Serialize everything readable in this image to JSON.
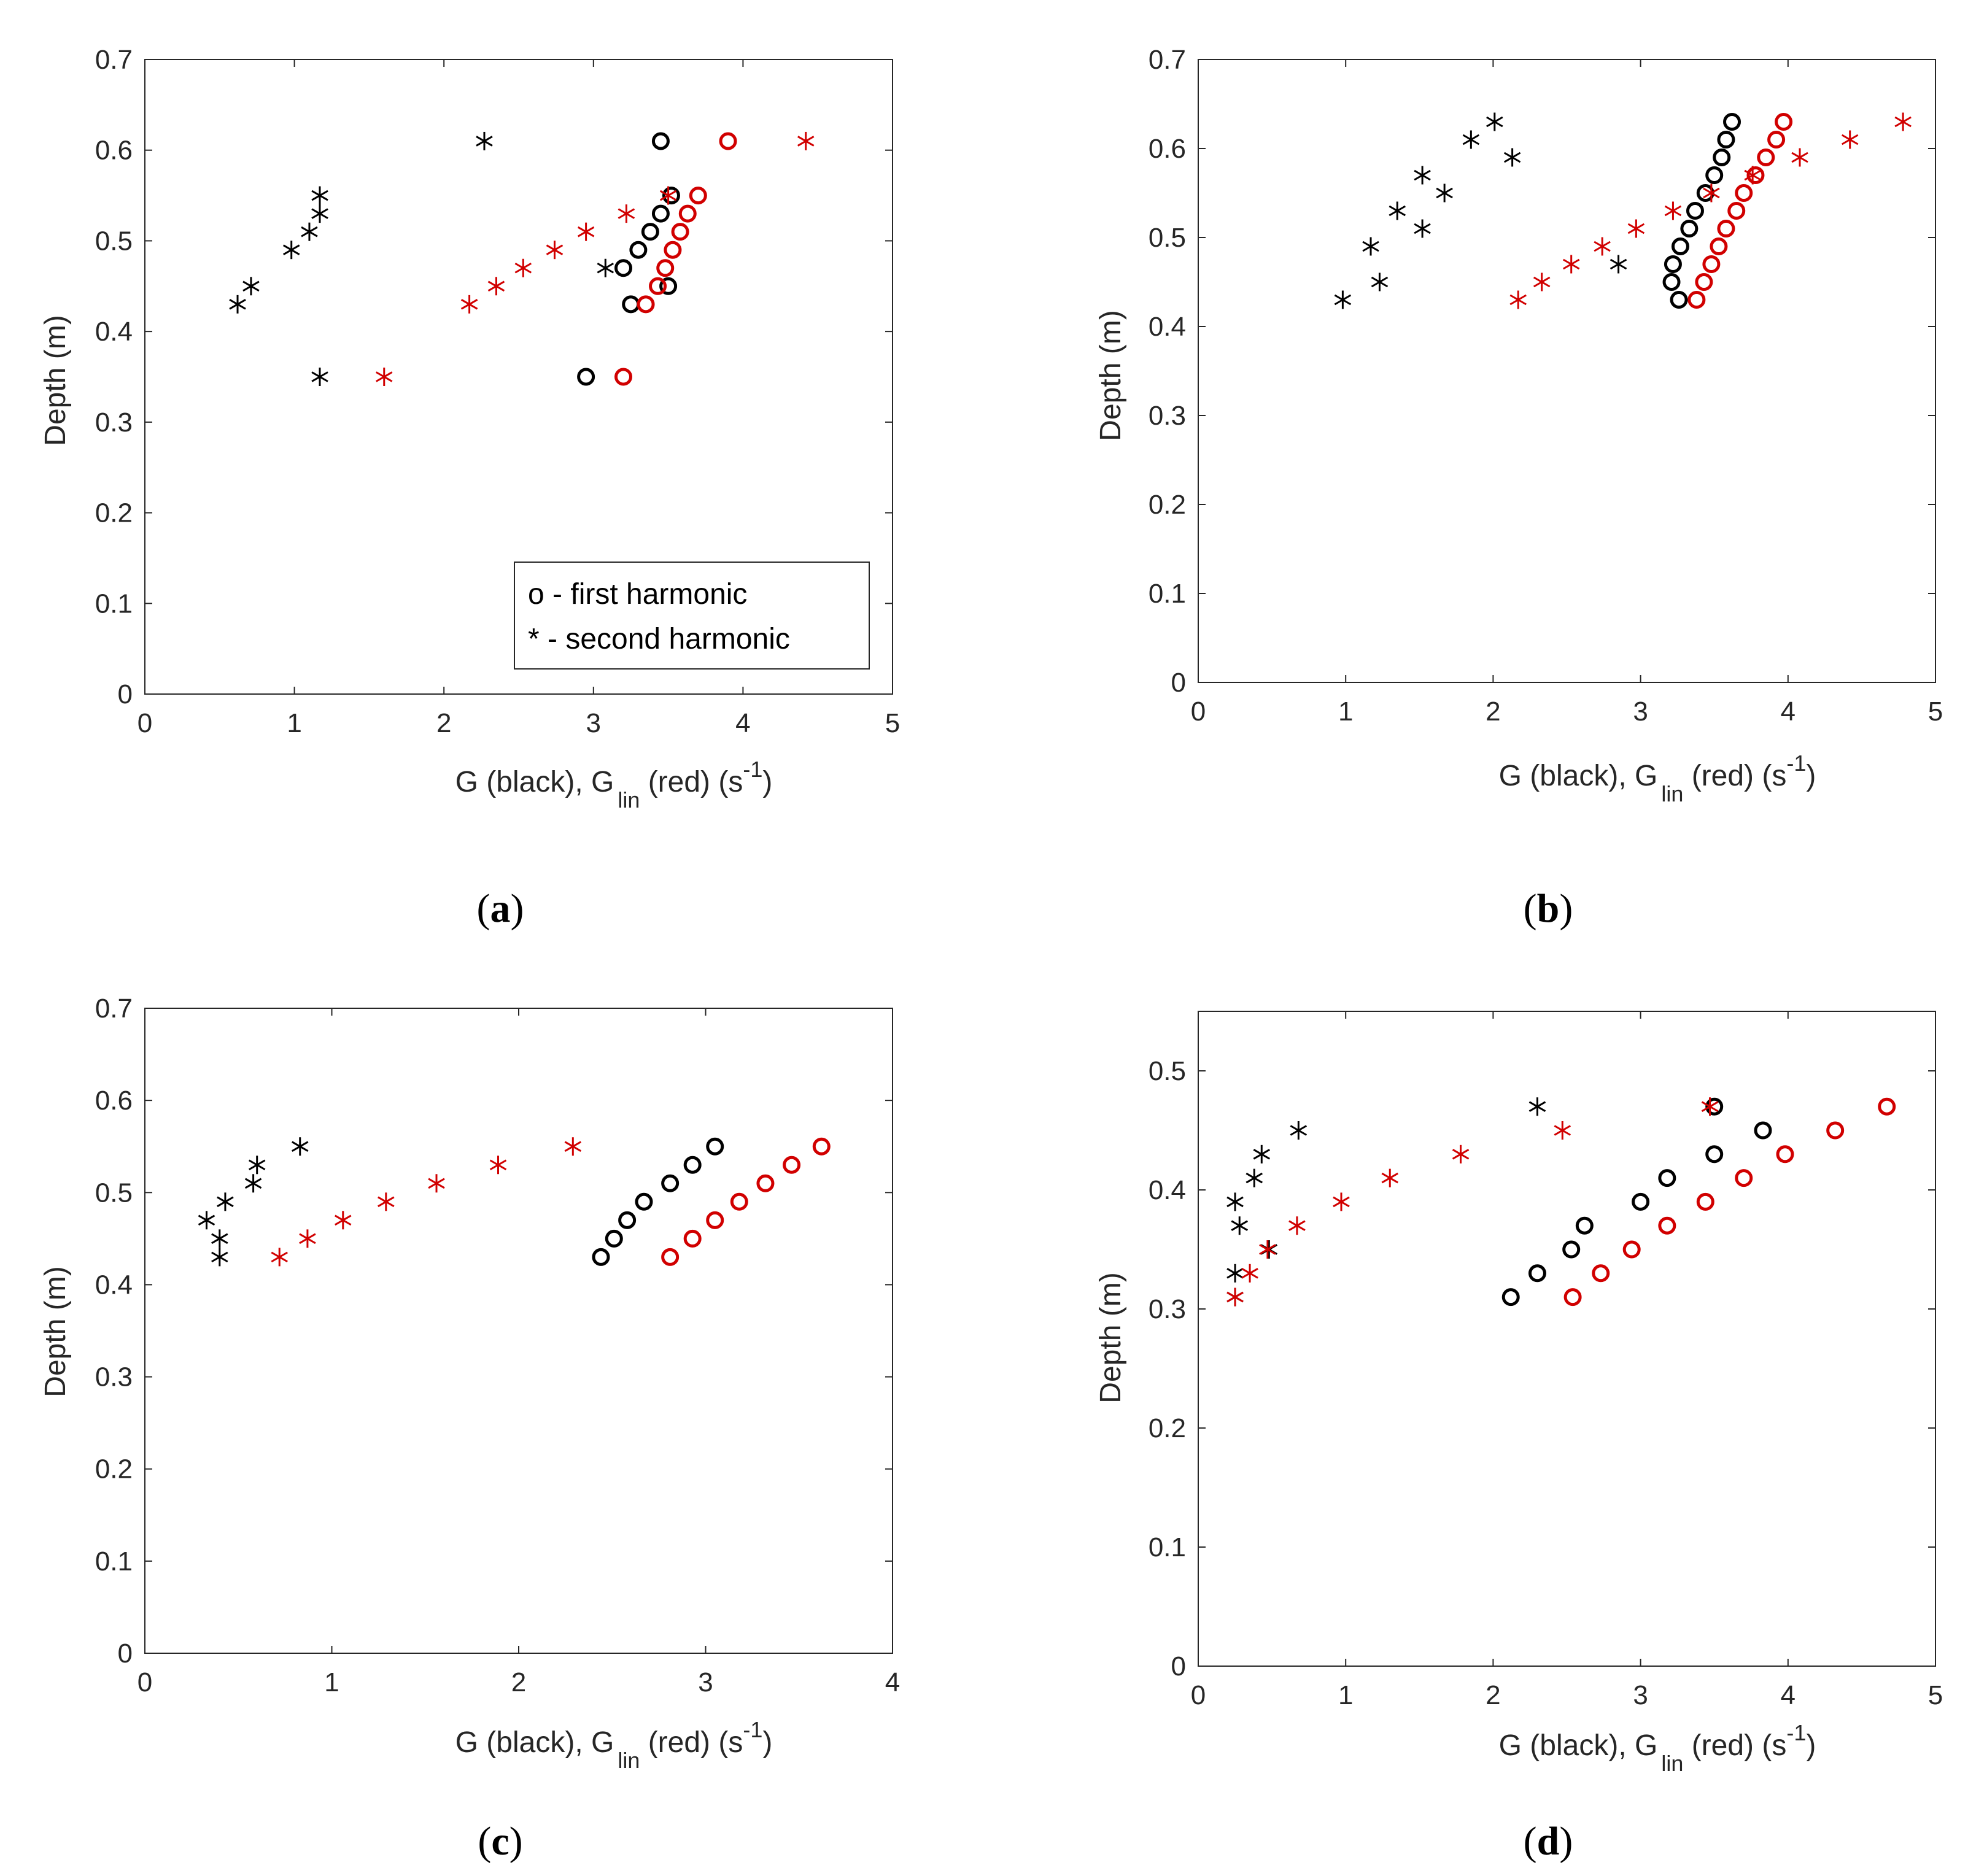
{
  "colors": {
    "black_series": "#000000",
    "red_series": "#d10000",
    "axis": "#262626"
  },
  "axis_labels": {
    "y": "Depth (m)",
    "x_prefix": "G (black), G",
    "x_sub": "lin",
    "x_mid": " (red) (s",
    "x_sup": "-1",
    "x_suffix": ")"
  },
  "legend": {
    "first": "o - first harmonic",
    "second": "* - second harmonic"
  },
  "captions": [
    {
      "open": "(",
      "letter": "a",
      "close": ")"
    },
    {
      "open": "(",
      "letter": "b",
      "close": ")"
    },
    {
      "open": "(",
      "letter": "c",
      "close": ")"
    },
    {
      "open": "(",
      "letter": "d",
      "close": ")"
    }
  ],
  "chart_data": [
    {
      "panel": "a",
      "type": "scatter",
      "xlabel": "G (black), G lin (red) (s-1)",
      "ylabel": "Depth (m)",
      "xlim": [
        0,
        5
      ],
      "ylim": [
        0,
        0.7
      ],
      "xticks": [
        0,
        1,
        2,
        3,
        4,
        5
      ],
      "yticks": [
        0,
        0.1,
        0.2,
        0.3,
        0.4,
        0.5,
        0.6,
        0.7
      ],
      "legend_position": "bottom-right",
      "series": [
        {
          "name": "G first harmonic",
          "marker": "o",
          "color": "black",
          "points": [
            [
              3.45,
              0.61
            ],
            [
              3.52,
              0.55
            ],
            [
              3.45,
              0.53
            ],
            [
              3.38,
              0.51
            ],
            [
              3.3,
              0.49
            ],
            [
              3.2,
              0.47
            ],
            [
              3.5,
              0.45
            ],
            [
              3.25,
              0.43
            ],
            [
              2.95,
              0.35
            ]
          ]
        },
        {
          "name": "G second harmonic",
          "marker": "*",
          "color": "black",
          "points": [
            [
              2.27,
              0.61
            ],
            [
              1.17,
              0.55
            ],
            [
              1.17,
              0.53
            ],
            [
              1.1,
              0.51
            ],
            [
              0.98,
              0.49
            ],
            [
              3.08,
              0.47
            ],
            [
              0.71,
              0.45
            ],
            [
              0.62,
              0.43
            ],
            [
              1.17,
              0.35
            ]
          ]
        },
        {
          "name": "G_lin first harmonic",
          "marker": "o",
          "color": "red",
          "points": [
            [
              3.9,
              0.61
            ],
            [
              3.7,
              0.55
            ],
            [
              3.63,
              0.53
            ],
            [
              3.58,
              0.51
            ],
            [
              3.53,
              0.49
            ],
            [
              3.48,
              0.47
            ],
            [
              3.43,
              0.45
            ],
            [
              3.35,
              0.43
            ],
            [
              3.2,
              0.35
            ]
          ]
        },
        {
          "name": "G_lin second harmonic",
          "marker": "*",
          "color": "red",
          "points": [
            [
              4.42,
              0.61
            ],
            [
              3.5,
              0.55
            ],
            [
              3.22,
              0.53
            ],
            [
              2.95,
              0.51
            ],
            [
              2.74,
              0.49
            ],
            [
              2.53,
              0.47
            ],
            [
              2.35,
              0.45
            ],
            [
              2.17,
              0.43
            ],
            [
              1.6,
              0.35
            ]
          ]
        }
      ]
    },
    {
      "panel": "b",
      "type": "scatter",
      "xlabel": "G (black), G lin (red) (s-1)",
      "ylabel": "Depth (m)",
      "xlim": [
        0,
        5
      ],
      "ylim": [
        0,
        0.7
      ],
      "xticks": [
        0,
        1,
        2,
        3,
        4,
        5
      ],
      "yticks": [
        0,
        0.1,
        0.2,
        0.3,
        0.4,
        0.5,
        0.6,
        0.7
      ],
      "series": [
        {
          "name": "G first harmonic",
          "marker": "o",
          "color": "black",
          "points": [
            [
              3.62,
              0.63
            ],
            [
              3.58,
              0.61
            ],
            [
              3.55,
              0.59
            ],
            [
              3.5,
              0.57
            ],
            [
              3.44,
              0.55
            ],
            [
              3.37,
              0.53
            ],
            [
              3.33,
              0.51
            ],
            [
              3.27,
              0.49
            ],
            [
              3.22,
              0.47
            ],
            [
              3.21,
              0.45
            ],
            [
              3.26,
              0.43
            ]
          ]
        },
        {
          "name": "G second harmonic",
          "marker": "*",
          "color": "black",
          "points": [
            [
              2.01,
              0.63
            ],
            [
              1.85,
              0.61
            ],
            [
              2.13,
              0.59
            ],
            [
              1.52,
              0.57
            ],
            [
              1.67,
              0.55
            ],
            [
              1.35,
              0.53
            ],
            [
              1.52,
              0.51
            ],
            [
              1.17,
              0.49
            ],
            [
              2.85,
              0.47
            ],
            [
              1.23,
              0.45
            ],
            [
              0.98,
              0.43
            ]
          ]
        },
        {
          "name": "G_lin first harmonic",
          "marker": "o",
          "color": "red",
          "points": [
            [
              3.97,
              0.63
            ],
            [
              3.92,
              0.61
            ],
            [
              3.85,
              0.59
            ],
            [
              3.78,
              0.57
            ],
            [
              3.7,
              0.55
            ],
            [
              3.65,
              0.53
            ],
            [
              3.58,
              0.51
            ],
            [
              3.53,
              0.49
            ],
            [
              3.48,
              0.47
            ],
            [
              3.43,
              0.45
            ],
            [
              3.38,
              0.43
            ]
          ]
        },
        {
          "name": "G_lin second harmonic",
          "marker": "*",
          "color": "red",
          "points": [
            [
              4.78,
              0.63
            ],
            [
              4.42,
              0.61
            ],
            [
              4.08,
              0.59
            ],
            [
              3.76,
              0.57
            ],
            [
              3.48,
              0.55
            ],
            [
              3.22,
              0.53
            ],
            [
              2.97,
              0.51
            ],
            [
              2.74,
              0.49
            ],
            [
              2.53,
              0.47
            ],
            [
              2.33,
              0.45
            ],
            [
              2.17,
              0.43
            ]
          ]
        }
      ]
    },
    {
      "panel": "c",
      "type": "scatter",
      "xlabel": "G (black), G lin (red) (s-1)",
      "ylabel": "Depth (m)",
      "xlim": [
        0,
        4
      ],
      "ylim": [
        0,
        0.7
      ],
      "xticks": [
        0,
        1,
        2,
        3,
        4
      ],
      "yticks": [
        0,
        0.1,
        0.2,
        0.3,
        0.4,
        0.5,
        0.6,
        0.7
      ],
      "series": [
        {
          "name": "G first harmonic",
          "marker": "o",
          "color": "black",
          "points": [
            [
              3.05,
              0.55
            ],
            [
              2.93,
              0.53
            ],
            [
              2.81,
              0.51
            ],
            [
              2.67,
              0.49
            ],
            [
              2.58,
              0.47
            ],
            [
              2.51,
              0.45
            ],
            [
              2.44,
              0.43
            ]
          ]
        },
        {
          "name": "G second harmonic",
          "marker": "*",
          "color": "black",
          "points": [
            [
              0.83,
              0.55
            ],
            [
              0.6,
              0.53
            ],
            [
              0.58,
              0.51
            ],
            [
              0.43,
              0.49
            ],
            [
              0.33,
              0.47
            ],
            [
              0.4,
              0.45
            ],
            [
              0.4,
              0.43
            ]
          ]
        },
        {
          "name": "G_lin first harmonic",
          "marker": "o",
          "color": "red",
          "points": [
            [
              3.62,
              0.55
            ],
            [
              3.46,
              0.53
            ],
            [
              3.32,
              0.51
            ],
            [
              3.18,
              0.49
            ],
            [
              3.05,
              0.47
            ],
            [
              2.93,
              0.45
            ],
            [
              2.81,
              0.43
            ]
          ]
        },
        {
          "name": "G_lin second harmonic",
          "marker": "*",
          "color": "red",
          "points": [
            [
              2.29,
              0.55
            ],
            [
              1.89,
              0.53
            ],
            [
              1.56,
              0.51
            ],
            [
              1.29,
              0.49
            ],
            [
              1.06,
              0.47
            ],
            [
              0.87,
              0.45
            ],
            [
              0.72,
              0.43
            ]
          ]
        }
      ]
    },
    {
      "panel": "d",
      "type": "scatter",
      "xlabel": "G (black), G lin (red) (s-1)",
      "ylabel": "Depth (m)",
      "xlim": [
        0,
        5
      ],
      "ylim": [
        0,
        0.55
      ],
      "xticks": [
        0,
        1,
        2,
        3,
        4,
        5
      ],
      "yticks": [
        0,
        0.1,
        0.2,
        0.3,
        0.4,
        0.5
      ],
      "series": [
        {
          "name": "G first harmonic",
          "marker": "o",
          "color": "black",
          "points": [
            [
              3.5,
              0.47
            ],
            [
              3.83,
              0.45
            ],
            [
              3.5,
              0.43
            ],
            [
              3.18,
              0.41
            ],
            [
              3.0,
              0.39
            ],
            [
              2.62,
              0.37
            ],
            [
              2.53,
              0.35
            ],
            [
              2.3,
              0.33
            ],
            [
              2.12,
              0.31
            ]
          ]
        },
        {
          "name": "G second harmonic",
          "marker": "*",
          "color": "black",
          "points": [
            [
              2.3,
              0.47
            ],
            [
              0.68,
              0.45
            ],
            [
              0.43,
              0.43
            ],
            [
              0.38,
              0.41
            ],
            [
              0.25,
              0.39
            ],
            [
              0.28,
              0.37
            ],
            [
              0.48,
              0.35
            ],
            [
              0.25,
              0.33
            ],
            [
              0.25,
              0.31
            ]
          ]
        },
        {
          "name": "G_lin first harmonic",
          "marker": "o",
          "color": "red",
          "points": [
            [
              4.67,
              0.47
            ],
            [
              4.32,
              0.45
            ],
            [
              3.98,
              0.43
            ],
            [
              3.7,
              0.41
            ],
            [
              3.44,
              0.39
            ],
            [
              3.18,
              0.37
            ],
            [
              2.94,
              0.35
            ],
            [
              2.73,
              0.33
            ],
            [
              2.54,
              0.31
            ]
          ]
        },
        {
          "name": "G_lin second harmonic",
          "marker": "*",
          "color": "red",
          "points": [
            [
              3.47,
              0.47
            ],
            [
              2.47,
              0.45
            ],
            [
              1.78,
              0.43
            ],
            [
              1.3,
              0.41
            ],
            [
              0.97,
              0.39
            ],
            [
              0.67,
              0.37
            ],
            [
              0.47,
              0.35
            ],
            [
              0.35,
              0.33
            ],
            [
              0.25,
              0.31
            ]
          ]
        }
      ]
    }
  ]
}
